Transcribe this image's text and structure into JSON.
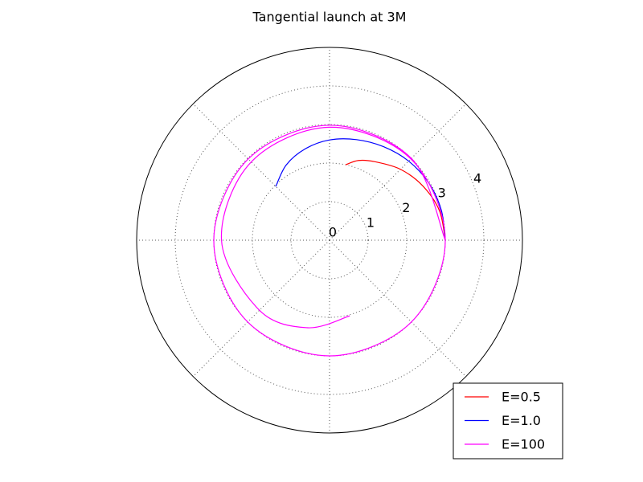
{
  "chart_data": {
    "type": "polar",
    "title": "Tangential launch at 3M",
    "ylim": [
      0,
      5
    ],
    "yticks": [
      0,
      1,
      2,
      3,
      4
    ],
    "thetagrid": [
      0,
      45,
      90,
      135,
      180,
      225,
      270,
      315
    ],
    "grid": true,
    "legend": "lower right",
    "series": [
      {
        "name": "E=0.5",
        "color": "#ff0000",
        "x": [
          0,
          15,
          30,
          45,
          60,
          70,
          78
        ],
        "values": [
          3.0,
          2.95,
          2.8,
          2.6,
          2.35,
          2.2,
          2.0
        ]
      },
      {
        "name": "E=1.0",
        "color": "#0000ff",
        "x": [
          0,
          15,
          30,
          45,
          60,
          75,
          90,
          105,
          120,
          135
        ],
        "values": [
          3.0,
          3.0,
          2.97,
          2.9,
          2.8,
          2.7,
          2.6,
          2.45,
          2.25,
          1.97
        ]
      },
      {
        "name": "E=100",
        "color": "#ff00ff",
        "x": [
          0,
          45,
          90,
          135,
          180,
          225,
          270,
          315,
          360,
          405,
          450,
          495,
          540,
          585,
          616,
          645
        ],
        "values": [
          3.0,
          3.0,
          2.98,
          2.98,
          3.0,
          3.0,
          3.0,
          3.0,
          3.0,
          2.98,
          2.93,
          2.87,
          2.8,
          2.57,
          2.34,
          2.03
        ]
      }
    ]
  }
}
